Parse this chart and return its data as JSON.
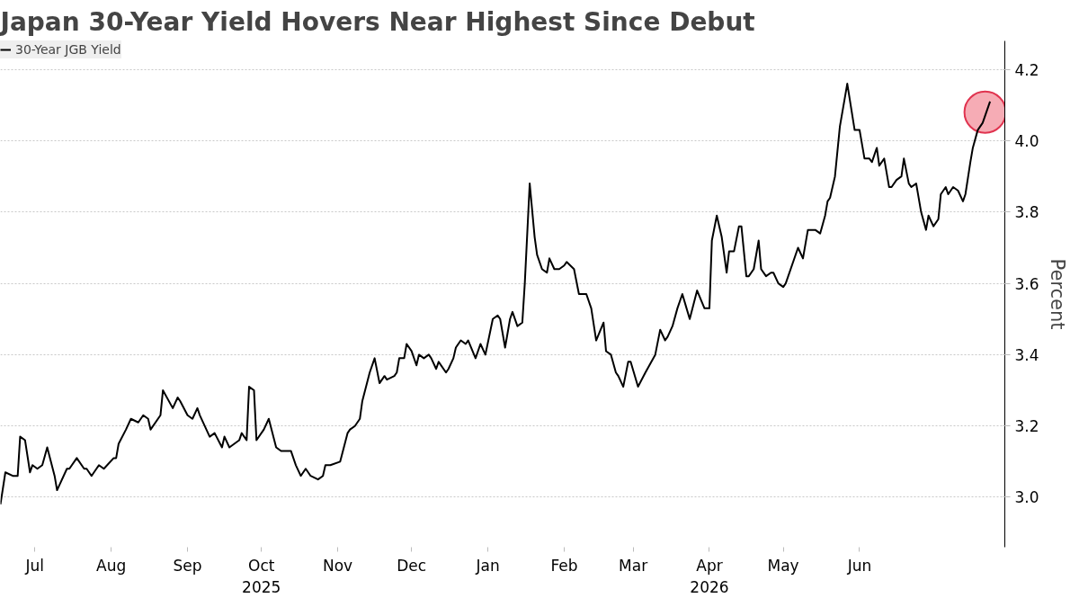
{
  "chart_data": {
    "type": "line",
    "title": "Japan 30-Year Yield Hovers Near Highest Since Debut",
    "ylabel": "Percent",
    "xlim": [
      "2025-06-17",
      "2026-07-30"
    ],
    "ylim": [
      2.86,
      4.28
    ],
    "xticks": [
      {
        "value": "2025-07-01",
        "label": "Jul"
      },
      {
        "value": "2025-08-01",
        "label": "Aug"
      },
      {
        "value": "2025-09-01",
        "label": "Sep"
      },
      {
        "value": "2025-10-01",
        "label": "Oct\n2025"
      },
      {
        "value": "2025-11-01",
        "label": "Nov"
      },
      {
        "value": "2025-12-01",
        "label": "Dec"
      },
      {
        "value": "2026-01-01",
        "label": "Jan"
      },
      {
        "value": "2026-02-01",
        "label": "Feb"
      },
      {
        "value": "2026-03-01",
        "label": "Mar"
      },
      {
        "value": "2026-04-01",
        "label": "Apr\n2026"
      },
      {
        "value": "2026-05-01",
        "label": "May"
      },
      {
        "value": "2026-06-01",
        "label": "Jun"
      }
    ],
    "yticks": [
      {
        "value": 3.0,
        "label": "3.0"
      },
      {
        "value": 3.2,
        "label": "3.2"
      },
      {
        "value": 3.4,
        "label": "3.4"
      },
      {
        "value": 3.6,
        "label": "3.6"
      },
      {
        "value": 3.8,
        "label": "3.8"
      },
      {
        "value": 4.0,
        "label": "4.0"
      },
      {
        "value": 4.2,
        "label": "4.2"
      }
    ],
    "grid": true,
    "legend": "top left",
    "series": [
      {
        "name": "30-Year JGB Yield",
        "color": "#000000",
        "x": [
          "2025-06-17",
          "2025-06-19",
          "2025-06-22",
          "2025-06-24",
          "2025-06-25",
          "2025-06-27",
          "2025-06-29",
          "2025-06-30",
          "2025-07-02",
          "2025-07-04",
          "2025-07-06",
          "2025-07-09",
          "2025-07-10",
          "2025-07-14",
          "2025-07-15",
          "2025-07-18",
          "2025-07-21",
          "2025-07-22",
          "2025-07-24",
          "2025-07-26",
          "2025-07-27",
          "2025-07-29",
          "2025-08-02",
          "2025-08-03",
          "2025-08-04",
          "2025-08-07",
          "2025-08-09",
          "2025-08-12",
          "2025-08-14",
          "2025-08-16",
          "2025-08-17",
          "2025-08-21",
          "2025-08-22",
          "2025-08-26",
          "2025-08-28",
          "2025-08-29",
          "2025-09-01",
          "2025-09-03",
          "2025-09-05",
          "2025-09-06",
          "2025-09-10",
          "2025-09-12",
          "2025-09-15",
          "2025-09-16",
          "2025-09-18",
          "2025-09-22",
          "2025-09-23",
          "2025-09-25",
          "2025-09-26",
          "2025-09-28",
          "2025-09-29",
          "2025-10-02",
          "2025-10-04",
          "2025-10-07",
          "2025-10-09",
          "2025-10-13",
          "2025-10-15",
          "2025-10-17",
          "2025-10-19",
          "2025-10-21",
          "2025-10-24",
          "2025-10-26",
          "2025-10-27",
          "2025-10-29",
          "2025-11-02",
          "2025-11-05",
          "2025-11-06",
          "2025-11-08",
          "2025-11-10",
          "2025-11-11",
          "2025-11-14",
          "2025-11-16",
          "2025-11-18",
          "2025-11-20",
          "2025-11-21",
          "2025-11-24",
          "2025-11-25",
          "2025-11-26",
          "2025-11-28",
          "2025-11-29",
          "2025-12-01",
          "2025-12-03",
          "2025-12-04",
          "2025-12-06",
          "2025-12-08",
          "2025-12-09",
          "2025-12-11",
          "2025-12-12",
          "2025-12-15",
          "2025-12-16",
          "2025-12-18",
          "2025-12-19",
          "2025-12-21",
          "2025-12-23",
          "2025-12-24",
          "2025-12-27",
          "2025-12-29",
          "2025-12-31",
          "2026-01-03",
          "2026-01-05",
          "2026-01-06",
          "2026-01-08",
          "2026-01-10",
          "2026-01-11",
          "2026-01-13",
          "2026-01-15",
          "2026-01-16",
          "2026-01-18",
          "2026-01-20",
          "2026-01-21",
          "2026-01-23",
          "2026-01-25",
          "2026-01-26",
          "2026-01-28",
          "2026-01-30",
          "2026-02-01",
          "2026-02-02",
          "2026-02-05",
          "2026-02-07",
          "2026-02-10",
          "2026-02-12",
          "2026-02-14",
          "2026-02-17",
          "2026-02-18",
          "2026-02-20",
          "2026-02-22",
          "2026-02-23",
          "2026-02-25",
          "2026-02-27",
          "2026-02-28",
          "2026-03-03",
          "2026-03-06",
          "2026-03-10",
          "2026-03-12",
          "2026-03-14",
          "2026-03-15",
          "2026-03-17",
          "2026-03-19",
          "2026-03-21",
          "2026-03-24",
          "2026-03-27",
          "2026-03-30",
          "2026-04-01",
          "2026-04-02",
          "2026-04-04",
          "2026-04-06",
          "2026-04-08",
          "2026-04-09",
          "2026-04-11",
          "2026-04-13",
          "2026-04-14",
          "2026-04-16",
          "2026-04-17",
          "2026-04-19",
          "2026-04-21",
          "2026-04-22",
          "2026-04-24",
          "2026-04-26",
          "2026-04-27",
          "2026-04-29",
          "2026-05-01",
          "2026-05-02",
          "2026-05-07",
          "2026-05-09",
          "2026-05-11",
          "2026-05-13",
          "2026-05-14",
          "2026-05-16",
          "2026-05-18",
          "2026-05-19",
          "2026-05-20",
          "2026-05-22",
          "2026-05-24",
          "2026-05-27",
          "2026-05-30",
          "2026-06-01",
          "2026-06-03",
          "2026-06-05",
          "2026-06-06",
          "2026-06-08",
          "2026-06-09",
          "2026-06-11",
          "2026-06-13",
          "2026-06-14",
          "2026-06-16",
          "2026-06-18",
          "2026-06-19",
          "2026-06-21",
          "2026-06-22",
          "2026-06-24",
          "2026-06-26",
          "2026-06-28",
          "2026-06-29",
          "2026-07-01",
          "2026-07-03",
          "2026-07-04",
          "2026-07-06",
          "2026-07-07",
          "2026-07-09",
          "2026-07-11",
          "2026-07-13",
          "2026-07-14",
          "2026-07-16",
          "2026-07-17",
          "2026-07-19",
          "2026-07-21",
          "2026-07-24"
        ],
        "values": [
          2.98,
          3.07,
          3.06,
          3.06,
          3.17,
          3.16,
          3.07,
          3.09,
          3.08,
          3.09,
          3.14,
          3.06,
          3.02,
          3.08,
          3.08,
          3.11,
          3.08,
          3.08,
          3.06,
          3.08,
          3.09,
          3.08,
          3.11,
          3.11,
          3.15,
          3.19,
          3.22,
          3.21,
          3.23,
          3.22,
          3.19,
          3.23,
          3.3,
          3.25,
          3.28,
          3.27,
          3.23,
          3.22,
          3.25,
          3.23,
          3.17,
          3.18,
          3.14,
          3.17,
          3.14,
          3.16,
          3.18,
          3.16,
          3.31,
          3.3,
          3.16,
          3.19,
          3.22,
          3.14,
          3.13,
          3.13,
          3.09,
          3.06,
          3.08,
          3.06,
          3.05,
          3.06,
          3.09,
          3.09,
          3.1,
          3.18,
          3.19,
          3.2,
          3.22,
          3.27,
          3.35,
          3.39,
          3.32,
          3.34,
          3.33,
          3.34,
          3.35,
          3.39,
          3.39,
          3.43,
          3.41,
          3.37,
          3.4,
          3.39,
          3.4,
          3.39,
          3.36,
          3.38,
          3.35,
          3.36,
          3.39,
          3.42,
          3.44,
          3.43,
          3.44,
          3.39,
          3.43,
          3.4,
          3.5,
          3.51,
          3.5,
          3.42,
          3.5,
          3.52,
          3.48,
          3.49,
          3.6,
          3.88,
          3.73,
          3.68,
          3.64,
          3.63,
          3.67,
          3.64,
          3.64,
          3.65,
          3.66,
          3.64,
          3.57,
          3.57,
          3.53,
          3.44,
          3.49,
          3.41,
          3.4,
          3.35,
          3.34,
          3.31,
          3.38,
          3.38,
          3.31,
          3.35,
          3.4,
          3.47,
          3.44,
          3.45,
          3.48,
          3.53,
          3.57,
          3.5,
          3.58,
          3.53,
          3.53,
          3.72,
          3.79,
          3.73,
          3.63,
          3.69,
          3.69,
          3.76,
          3.76,
          3.62,
          3.62,
          3.64,
          3.72,
          3.64,
          3.62,
          3.63,
          3.63,
          3.6,
          3.59,
          3.6,
          3.7,
          3.67,
          3.75,
          3.75,
          3.75,
          3.74,
          3.79,
          3.83,
          3.84,
          3.9,
          4.04,
          4.16,
          4.03,
          4.03,
          3.95,
          3.95,
          3.94,
          3.98,
          3.93,
          3.95,
          3.87,
          3.87,
          3.89,
          3.9,
          3.95,
          3.88,
          3.87,
          3.88,
          3.8,
          3.75,
          3.79,
          3.76,
          3.78,
          3.85,
          3.87,
          3.85,
          3.87,
          3.86,
          3.83,
          3.85,
          3.94,
          3.98,
          4.03,
          4.05,
          4.11
        ]
      },
      {
        "type": "scatter",
        "marker": "circle",
        "color": "#f5a3ad",
        "x": [
          "2026-07-22"
        ],
        "values": [
          4.08
        ]
      }
    ]
  }
}
